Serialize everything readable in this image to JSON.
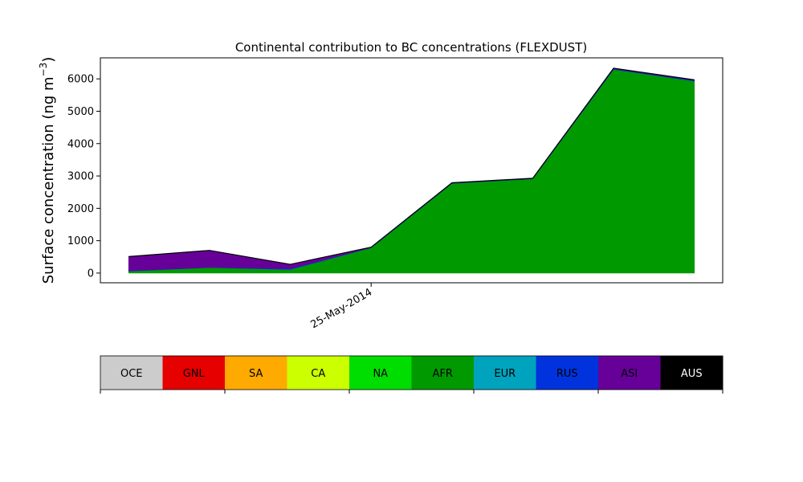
{
  "chart_data": {
    "type": "area",
    "title": "Continental contribution to BC concentrations (FLEXDUST)",
    "ylabel": "Surface concentration (ng m",
    "ylabel_superscript": "−3",
    "ylabel_close": ")",
    "xlabel": "",
    "ylim": [
      -300,
      6650
    ],
    "yticks": [
      0,
      1000,
      2000,
      3000,
      4000,
      5000,
      6000
    ],
    "ytick_labels": [
      "0",
      "1000",
      "2000",
      "3000",
      "4000",
      "5000",
      "6000"
    ],
    "x_tick_label": "25-May-2014",
    "x_tick_index": 3,
    "x_count": 8,
    "x_range": [
      -0.35,
      7.35
    ],
    "grid": false,
    "stack_order": [
      "OCE",
      "GNL",
      "SA",
      "CA",
      "NA",
      "AFR",
      "EUR",
      "RUS",
      "ASI",
      "AUS"
    ],
    "series": [
      {
        "name": "OCE",
        "color": "#cccccc",
        "values": [
          0,
          0,
          0,
          0,
          0,
          0,
          0,
          0
        ]
      },
      {
        "name": "GNL",
        "color": "#e60000",
        "values": [
          0,
          0,
          0,
          0,
          0,
          0,
          0,
          0
        ]
      },
      {
        "name": "SA",
        "color": "#ffaa00",
        "values": [
          0,
          0,
          0,
          0,
          0,
          0,
          0,
          0
        ]
      },
      {
        "name": "CA",
        "color": "#ccff00",
        "values": [
          0,
          0,
          0,
          0,
          0,
          0,
          0,
          0
        ]
      },
      {
        "name": "NA",
        "color": "#00dd00",
        "values": [
          0,
          0,
          0,
          0,
          0,
          0,
          0,
          0
        ]
      },
      {
        "name": "AFR",
        "color": "#009900",
        "values": [
          60,
          170,
          110,
          780,
          2770,
          2910,
          6290,
          5930
        ]
      },
      {
        "name": "EUR",
        "color": "#00a3bd",
        "values": [
          0,
          0,
          0,
          0,
          0,
          0,
          0,
          0
        ]
      },
      {
        "name": "RUS",
        "color": "#0033dd",
        "values": [
          10,
          10,
          30,
          10,
          10,
          10,
          20,
          20
        ]
      },
      {
        "name": "ASI",
        "color": "#660099",
        "values": [
          440,
          520,
          130,
          10,
          10,
          10,
          20,
          20
        ]
      },
      {
        "name": "AUS",
        "color": "#000000",
        "values": [
          0,
          0,
          0,
          0,
          0,
          0,
          0,
          0
        ]
      }
    ],
    "legend": {
      "placement": "bottom",
      "text_colors": [
        "#000000",
        "#000000",
        "#000000",
        "#000000",
        "#000000",
        "#000000",
        "#000000",
        "#000000",
        "#000000",
        "#ffffff"
      ]
    }
  }
}
